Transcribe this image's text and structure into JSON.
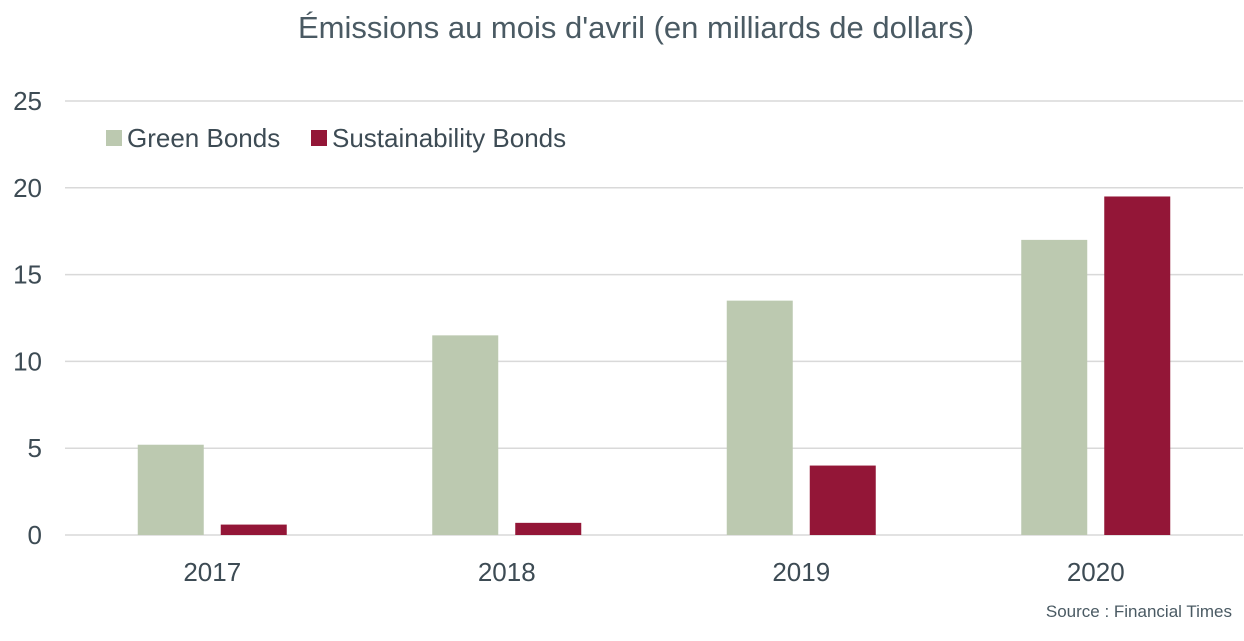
{
  "chart_data": {
    "type": "bar",
    "title": "Émissions au mois d'avril (en milliards de dollars)",
    "categories": [
      "2017",
      "2018",
      "2019",
      "2020"
    ],
    "series": [
      {
        "name": "Green Bonds",
        "values": [
          5.2,
          11.5,
          13.5,
          17.0
        ],
        "color": "#bcc9b0"
      },
      {
        "name": "Sustainability Bonds",
        "values": [
          0.6,
          0.7,
          4.0,
          19.5
        ],
        "color": "#931637"
      }
    ],
    "ylim": [
      0,
      25
    ],
    "yticks": [
      0,
      5,
      10,
      15,
      20,
      25
    ],
    "grid": true,
    "legend_position": "top-left",
    "xlabel": "",
    "ylabel": "",
    "source": "Source : Financial Times"
  },
  "colors": {
    "title": "#4a5a63",
    "axis_text": "#3d4b54",
    "gridline": "#d9d9d9"
  }
}
